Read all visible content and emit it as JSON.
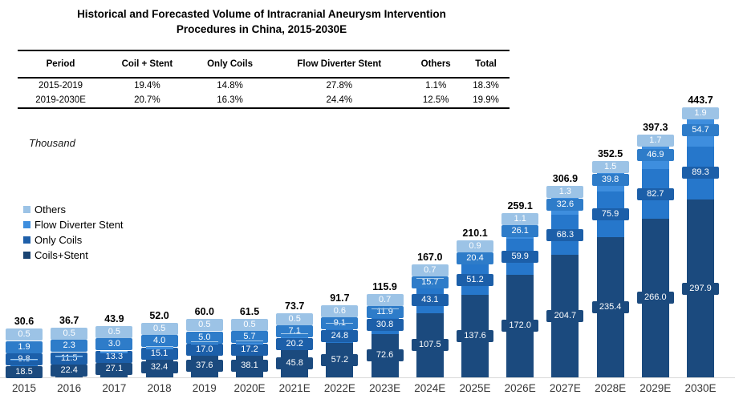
{
  "header": {
    "title_line1": "Historical and Forecasted Volume of Intracranial Aneurysm Intervention",
    "title_line2": "Procedures in China, 2015-2030E"
  },
  "table": {
    "columns": [
      "Period",
      "Coil + Stent",
      "Only Coils",
      "Flow Diverter Stent",
      "Others",
      "Total"
    ],
    "rows": [
      [
        "2015-2019",
        "19.4%",
        "14.8%",
        "27.8%",
        "1.1%",
        "18.3%"
      ],
      [
        "2019-2030E",
        "20.7%",
        "16.3%",
        "24.4%",
        "12.5%",
        "19.9%"
      ]
    ]
  },
  "chart": {
    "unit_label": "Thousand"
  },
  "chart_data": {
    "type": "bar",
    "stacked": true,
    "title": "Historical and Forecasted Volume of Intracranial Aneurysm Intervention Procedures in China, 2015-2030E",
    "unit": "Thousand",
    "grid": false,
    "legend_position": "left-middle",
    "categories": [
      "2015",
      "2016",
      "2017",
      "2018",
      "2019",
      "2020E",
      "2021E",
      "2022E",
      "2023E",
      "2024E",
      "2025E",
      "2026E",
      "2027E",
      "2028E",
      "2029E",
      "2030E"
    ],
    "series": [
      {
        "name": "Coils+Stent",
        "color": "#1B4A7E",
        "label_color": "#1B4A7E",
        "legend_color": "#1A4473",
        "values": [
          18.5,
          22.4,
          27.1,
          32.4,
          37.6,
          38.1,
          45.8,
          57.2,
          72.6,
          107.5,
          137.6,
          172.0,
          204.7,
          235.4,
          266.0,
          297.9
        ]
      },
      {
        "name": "Only Coils",
        "color": "#2677CB",
        "label_color": "#1C5FA9",
        "legend_color": "#1E5FA9",
        "values": [
          9.8,
          11.5,
          13.3,
          15.1,
          17.0,
          17.2,
          20.2,
          24.8,
          30.8,
          43.1,
          51.2,
          59.9,
          68.3,
          75.9,
          82.7,
          89.3
        ]
      },
      {
        "name": "Flow Diverter Stent",
        "color": "#3E8EDE",
        "label_color": "#2E7CC9",
        "legend_color": "#3E8EDE",
        "values": [
          1.9,
          2.3,
          3.0,
          4.0,
          5.0,
          5.7,
          7.1,
          9.1,
          11.9,
          15.7,
          20.4,
          26.1,
          32.6,
          39.8,
          46.9,
          54.7
        ]
      },
      {
        "name": "Others",
        "color": "#A9CCEA",
        "label_color": "#9CC3E6",
        "legend_color": "#9CC3E6",
        "values": [
          0.5,
          0.5,
          0.5,
          0.5,
          0.5,
          0.5,
          0.5,
          0.6,
          0.7,
          0.7,
          0.9,
          1.1,
          1.3,
          1.5,
          1.7,
          1.9
        ]
      }
    ],
    "totals": [
      30.6,
      36.7,
      43.9,
      52.0,
      60.0,
      61.5,
      73.7,
      91.7,
      115.9,
      167.0,
      210.1,
      259.1,
      306.9,
      352.5,
      397.3,
      443.7
    ],
    "ylim": [
      0,
      460
    ]
  }
}
